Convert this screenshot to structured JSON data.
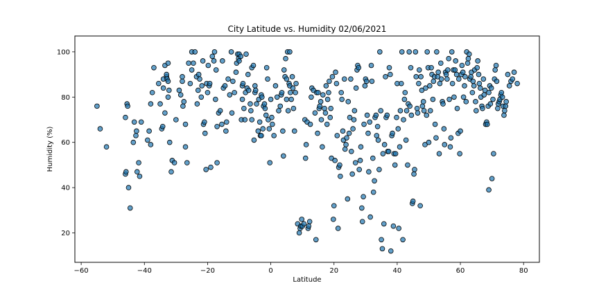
{
  "chart_data": {
    "type": "scatter",
    "title": "City Latitude vs. Humidity 02/06/2021",
    "xlabel": "Latitude",
    "ylabel": "Humidity (%)",
    "xlim": [
      -62,
      85
    ],
    "ylim": [
      7,
      107
    ],
    "xticks": [
      -60,
      -40,
      -20,
      0,
      20,
      40,
      60,
      80
    ],
    "yticks": [
      20,
      40,
      60,
      80,
      100
    ],
    "grid": false,
    "legend": "none",
    "colors": {
      "marker_fill": "#1f77b4",
      "marker_edge": "#000000"
    },
    "points": [
      [
        -55,
        76
      ],
      [
        -54,
        66
      ],
      [
        -52,
        58
      ],
      [
        -46,
        71
      ],
      [
        -45.5,
        77
      ],
      [
        -45.3,
        76
      ],
      [
        -46,
        46
      ],
      [
        -45.8,
        47
      ],
      [
        -45,
        40
      ],
      [
        -44.5,
        31
      ],
      [
        -43.5,
        60
      ],
      [
        -43.2,
        69
      ],
      [
        -42.5,
        65
      ],
      [
        -42.7,
        63
      ],
      [
        -42.3,
        47
      ],
      [
        -41.8,
        51
      ],
      [
        -41.5,
        45
      ],
      [
        -41,
        69
      ],
      [
        -39,
        61
      ],
      [
        -38.5,
        65
      ],
      [
        -38,
        59
      ],
      [
        -38,
        77
      ],
      [
        -37.5,
        82
      ],
      [
        -37,
        93
      ],
      [
        -35.5,
        86
      ],
      [
        -35,
        77
      ],
      [
        -34.5,
        66
      ],
      [
        -34.2,
        67
      ],
      [
        -34,
        84
      ],
      [
        -34,
        88
      ],
      [
        -33.5,
        73
      ],
      [
        -33.5,
        94
      ],
      [
        -33,
        89
      ],
      [
        -33,
        90
      ],
      [
        -32.8,
        88
      ],
      [
        -32.5,
        87
      ],
      [
        -32.5,
        80
      ],
      [
        -32.2,
        83
      ],
      [
        -32.5,
        95
      ],
      [
        -32,
        60
      ],
      [
        -31.5,
        47
      ],
      [
        -31.2,
        52
      ],
      [
        -30.5,
        51
      ],
      [
        -30,
        70
      ],
      [
        -29,
        83
      ],
      [
        -28.5,
        81
      ],
      [
        -28,
        87
      ],
      [
        -28,
        89
      ],
      [
        -27.8,
        76
      ],
      [
        -27.5,
        78
      ],
      [
        -27,
        68
      ],
      [
        -27,
        58
      ],
      [
        -26.5,
        51
      ],
      [
        -26,
        95
      ],
      [
        -25.5,
        86
      ],
      [
        -25,
        92
      ],
      [
        -25,
        100
      ],
      [
        -24.5,
        95
      ],
      [
        -24,
        100
      ],
      [
        -23.5,
        89
      ],
      [
        -23.3,
        77
      ],
      [
        -23,
        83
      ],
      [
        -22.8,
        90
      ],
      [
        -22.5,
        88
      ],
      [
        -22,
        80
      ],
      [
        -21.8,
        85
      ],
      [
        -21.5,
        96
      ],
      [
        -21.3,
        68
      ],
      [
        -21,
        69
      ],
      [
        -20.8,
        64
      ],
      [
        -20.5,
        48
      ],
      [
        -20.3,
        86
      ],
      [
        -20,
        82
      ],
      [
        -19.8,
        94
      ],
      [
        -19.5,
        85
      ],
      [
        -19.3,
        86
      ],
      [
        -19,
        49
      ],
      [
        -18.5,
        98
      ],
      [
        -18,
        96
      ],
      [
        -17.8,
        100
      ],
      [
        -17.5,
        79
      ],
      [
        -17.3,
        92
      ],
      [
        -17,
        51
      ],
      [
        -17,
        67
      ],
      [
        -16.5,
        73
      ],
      [
        -16,
        74
      ],
      [
        -15.5,
        68
      ],
      [
        -15.3,
        96
      ],
      [
        -15,
        84
      ],
      [
        -14.5,
        85
      ],
      [
        -14.2,
        65
      ],
      [
        -14,
        69
      ],
      [
        -13.5,
        88
      ],
      [
        -13,
        81
      ],
      [
        -12.5,
        100
      ],
      [
        -12.3,
        73
      ],
      [
        -12,
        87
      ],
      [
        -11.5,
        82
      ],
      [
        -11,
        91
      ],
      [
        -10.8,
        95
      ],
      [
        -10.5,
        99
      ],
      [
        -10.2,
        97
      ],
      [
        -10,
        96
      ],
      [
        -10,
        99
      ],
      [
        -9.5,
        98
      ],
      [
        -9.3,
        70
      ],
      [
        -9,
        85
      ],
      [
        -9,
        79
      ],
      [
        -8.8,
        86
      ],
      [
        -8.5,
        75
      ],
      [
        -8.2,
        70
      ],
      [
        -8,
        82
      ],
      [
        -7.8,
        99
      ],
      [
        -7.5,
        84
      ],
      [
        -7.2,
        90
      ],
      [
        -7,
        83
      ],
      [
        -6.5,
        77
      ],
      [
        -6.3,
        74
      ],
      [
        -6,
        70
      ],
      [
        -6,
        93
      ],
      [
        -5.5,
        94
      ],
      [
        -5.3,
        61
      ],
      [
        -5,
        85
      ],
      [
        -5,
        82
      ],
      [
        -4.8,
        83
      ],
      [
        -4.5,
        77
      ],
      [
        -4,
        65
      ],
      [
        -3.8,
        79
      ],
      [
        -3.5,
        69
      ],
      [
        -3.3,
        63
      ],
      [
        -3,
        81
      ],
      [
        -3,
        63
      ],
      [
        -2.8,
        80
      ],
      [
        -2.5,
        66
      ],
      [
        -2.3,
        76
      ],
      [
        -2,
        77
      ],
      [
        -1.8,
        75
      ],
      [
        -1.5,
        72
      ],
      [
        -1.3,
        93
      ],
      [
        -1,
        88
      ],
      [
        -0.8,
        70
      ],
      [
        -0.5,
        66
      ],
      [
        -0.3,
        51
      ],
      [
        0,
        79
      ],
      [
        0.3,
        71
      ],
      [
        0.5,
        68
      ],
      [
        1,
        63
      ],
      [
        1.5,
        85
      ],
      [
        2,
        80
      ],
      [
        2.5,
        74
      ],
      [
        3,
        76
      ],
      [
        3.3,
        81
      ],
      [
        3.5,
        82
      ],
      [
        3.8,
        65
      ],
      [
        4,
        54
      ],
      [
        4.2,
        92
      ],
      [
        4.5,
        89
      ],
      [
        4.7,
        97
      ],
      [
        5,
        79
      ],
      [
        5,
        88
      ],
      [
        5.3,
        100
      ],
      [
        5.5,
        74
      ],
      [
        5.8,
        86
      ],
      [
        6,
        85
      ],
      [
        6,
        100
      ],
      [
        6.2,
        82
      ],
      [
        6.5,
        79
      ],
      [
        6.8,
        89
      ],
      [
        7,
        84
      ],
      [
        7.2,
        75
      ],
      [
        7.5,
        65
      ],
      [
        7.8,
        82
      ],
      [
        8,
        86
      ],
      [
        8.5,
        24
      ],
      [
        9,
        20
      ],
      [
        9.3,
        22
      ],
      [
        9.5,
        23
      ],
      [
        9.8,
        26
      ],
      [
        10,
        23
      ],
      [
        10.5,
        24
      ],
      [
        10.8,
        70
      ],
      [
        11,
        53
      ],
      [
        11.2,
        59
      ],
      [
        11.5,
        69
      ],
      [
        11.8,
        22
      ],
      [
        12,
        23
      ],
      [
        12.3,
        25
      ],
      [
        12.5,
        68
      ],
      [
        12.8,
        80
      ],
      [
        13,
        84
      ],
      [
        13.5,
        83
      ],
      [
        14,
        73
      ],
      [
        14.3,
        17
      ],
      [
        14.5,
        82
      ],
      [
        14.8,
        64
      ],
      [
        15,
        82
      ],
      [
        15.3,
        75
      ],
      [
        15.5,
        76
      ],
      [
        15.8,
        78
      ],
      [
        16,
        70
      ],
      [
        16.3,
        58
      ],
      [
        16.5,
        81
      ],
      [
        17,
        75
      ],
      [
        17.3,
        73
      ],
      [
        17.5,
        85
      ],
      [
        17.8,
        68
      ],
      [
        18,
        79
      ],
      [
        18.3,
        82
      ],
      [
        18.5,
        87
      ],
      [
        18.8,
        71
      ],
      [
        19,
        75
      ],
      [
        19.2,
        53
      ],
      [
        19.5,
        89
      ],
      [
        19.8,
        26
      ],
      [
        20,
        32
      ],
      [
        20.3,
        52
      ],
      [
        20.5,
        91
      ],
      [
        20.8,
        86
      ],
      [
        21,
        63
      ],
      [
        21.3,
        22
      ],
      [
        21.5,
        49
      ],
      [
        21.8,
        50
      ],
      [
        22,
        45
      ],
      [
        22.3,
        82
      ],
      [
        22.5,
        79
      ],
      [
        22.8,
        65
      ],
      [
        23,
        61
      ],
      [
        23.3,
        88
      ],
      [
        23.5,
        57
      ],
      [
        23.8,
        59
      ],
      [
        24,
        62
      ],
      [
        24.3,
        35
      ],
      [
        24.5,
        78
      ],
      [
        24.8,
        64
      ],
      [
        25,
        71
      ],
      [
        25.3,
        88
      ],
      [
        25.5,
        56
      ],
      [
        25.8,
        46
      ],
      [
        26,
        66
      ],
      [
        26.3,
        70
      ],
      [
        26.5,
        74
      ],
      [
        26.8,
        51
      ],
      [
        27,
        84
      ],
      [
        27.3,
        92
      ],
      [
        27.5,
        94
      ],
      [
        27.8,
        93
      ],
      [
        28,
        48
      ],
      [
        28.3,
        52
      ],
      [
        28.5,
        58
      ],
      [
        28.8,
        31
      ],
      [
        29,
        25
      ],
      [
        29.3,
        36
      ],
      [
        29.5,
        68
      ],
      [
        29.8,
        85
      ],
      [
        30,
        88
      ],
      [
        30.3,
        87
      ],
      [
        30.5,
        72
      ],
      [
        30.8,
        64
      ],
      [
        31,
        47
      ],
      [
        31.3,
        69
      ],
      [
        31.5,
        27
      ],
      [
        31.8,
        94
      ],
      [
        32,
        87
      ],
      [
        32.3,
        53
      ],
      [
        32.5,
        38
      ],
      [
        32.8,
        43
      ],
      [
        33,
        71
      ],
      [
        33.3,
        72
      ],
      [
        33.5,
        63
      ],
      [
        33.8,
        67
      ],
      [
        34,
        61
      ],
      [
        34.3,
        48
      ],
      [
        34.5,
        100
      ],
      [
        34.8,
        74
      ],
      [
        35,
        17
      ],
      [
        35.3,
        13
      ],
      [
        35.5,
        55
      ],
      [
        35.8,
        24
      ],
      [
        36,
        59
      ],
      [
        36.3,
        89
      ],
      [
        36.5,
        71
      ],
      [
        36.8,
        72
      ],
      [
        37,
        56
      ],
      [
        37.3,
        56
      ],
      [
        37.5,
        93
      ],
      [
        37.8,
        90
      ],
      [
        38,
        12
      ],
      [
        38.3,
        63
      ],
      [
        38.5,
        64
      ],
      [
        38.8,
        23
      ],
      [
        39,
        55
      ],
      [
        39.3,
        50
      ],
      [
        39.5,
        55
      ],
      [
        39.8,
        71
      ],
      [
        40,
        86
      ],
      [
        40.3,
        66
      ],
      [
        40.5,
        22
      ],
      [
        40.8,
        58
      ],
      [
        41,
        74
      ],
      [
        41.3,
        86
      ],
      [
        41.5,
        100
      ],
      [
        41.8,
        17
      ],
      [
        42,
        70
      ],
      [
        42.3,
        79
      ],
      [
        42.5,
        82
      ],
      [
        42.8,
        61
      ],
      [
        43,
        74
      ],
      [
        43.3,
        50
      ],
      [
        43.5,
        77
      ],
      [
        43.8,
        100
      ],
      [
        44,
        76
      ],
      [
        44.3,
        93
      ],
      [
        44.5,
        72
      ],
      [
        44.8,
        33
      ],
      [
        45,
        34
      ],
      [
        45.3,
        46
      ],
      [
        45.5,
        48
      ],
      [
        45.8,
        100
      ],
      [
        46,
        89
      ],
      [
        46.3,
        75
      ],
      [
        46.5,
        73
      ],
      [
        46.8,
        86
      ],
      [
        47,
        92
      ],
      [
        47.3,
        32
      ],
      [
        47.5,
        89
      ],
      [
        47.8,
        83
      ],
      [
        48,
        76
      ],
      [
        48.3,
        78
      ],
      [
        48.5,
        74
      ],
      [
        48.8,
        59
      ],
      [
        49,
        84
      ],
      [
        49.3,
        72
      ],
      [
        49.5,
        100
      ],
      [
        49.8,
        93
      ],
      [
        50,
        60
      ],
      [
        50.3,
        85
      ],
      [
        50.5,
        74
      ],
      [
        50.8,
        93
      ],
      [
        51,
        90
      ],
      [
        51.3,
        79
      ],
      [
        51.5,
        87
      ],
      [
        51.8,
        89
      ],
      [
        52,
        68
      ],
      [
        52.3,
        62
      ],
      [
        52.5,
        100
      ],
      [
        52.8,
        89
      ],
      [
        53,
        91
      ],
      [
        53.3,
        55
      ],
      [
        53.5,
        86
      ],
      [
        53.8,
        95
      ],
      [
        54,
        88
      ],
      [
        54.3,
        78
      ],
      [
        54.5,
        77
      ],
      [
        54.8,
        66
      ],
      [
        55,
        59
      ],
      [
        55.3,
        91
      ],
      [
        55.5,
        90
      ],
      [
        55.8,
        88
      ],
      [
        56,
        92
      ],
      [
        56.3,
        97
      ],
      [
        56.5,
        79
      ],
      [
        56.8,
        58
      ],
      [
        57,
        62
      ],
      [
        57.3,
        100
      ],
      [
        57.5,
        86
      ],
      [
        57.8,
        92
      ],
      [
        58,
        80
      ],
      [
        58.3,
        92
      ],
      [
        58.5,
        96
      ],
      [
        58.8,
        90
      ],
      [
        59,
        75
      ],
      [
        59.3,
        64
      ],
      [
        59.5,
        88
      ],
      [
        59.8,
        55
      ],
      [
        60,
        65
      ],
      [
        60.3,
        90
      ],
      [
        60.5,
        94
      ],
      [
        60.8,
        91
      ],
      [
        61,
        80
      ],
      [
        61.3,
        85
      ],
      [
        61.5,
        89
      ],
      [
        61.8,
        78
      ],
      [
        62,
        100
      ],
      [
        62.3,
        95
      ],
      [
        62.5,
        97
      ],
      [
        62.8,
        99
      ],
      [
        63,
        88
      ],
      [
        63.3,
        89
      ],
      [
        63.5,
        91
      ],
      [
        63.8,
        82
      ],
      [
        64,
        87
      ],
      [
        64.3,
        85
      ],
      [
        64.5,
        92
      ],
      [
        64.8,
        78
      ],
      [
        65,
        74
      ],
      [
        65.3,
        93
      ],
      [
        65.5,
        96
      ],
      [
        65.8,
        90
      ],
      [
        66,
        86
      ],
      [
        66.3,
        84
      ],
      [
        66.5,
        80
      ],
      [
        66.8,
        76
      ],
      [
        67,
        75
      ],
      [
        67.3,
        88
      ],
      [
        67.5,
        81
      ],
      [
        67.8,
        83
      ],
      [
        68,
        68
      ],
      [
        68.3,
        69
      ],
      [
        68.5,
        68
      ],
      [
        68.8,
        76
      ],
      [
        69,
        82
      ],
      [
        69.3,
        85
      ],
      [
        69.5,
        77
      ],
      [
        69.8,
        84
      ],
      [
        70,
        44
      ],
      [
        70.3,
        79
      ],
      [
        70.5,
        55
      ],
      [
        70.8,
        88
      ],
      [
        71,
        92
      ],
      [
        71.3,
        94
      ],
      [
        71.5,
        87
      ],
      [
        71.8,
        75
      ],
      [
        72,
        77
      ],
      [
        72.3,
        78
      ],
      [
        72.5,
        79
      ],
      [
        72.8,
        81
      ],
      [
        73,
        82
      ],
      [
        73.3,
        80
      ],
      [
        73.5,
        76
      ],
      [
        73.8,
        72
      ],
      [
        74,
        74
      ],
      [
        74.3,
        76
      ],
      [
        74.5,
        78
      ],
      [
        75,
        90
      ],
      [
        75.5,
        85
      ],
      [
        76,
        87
      ],
      [
        76.5,
        88
      ],
      [
        77,
        91
      ],
      [
        69,
        39
      ],
      [
        78,
        86
      ]
    ]
  }
}
